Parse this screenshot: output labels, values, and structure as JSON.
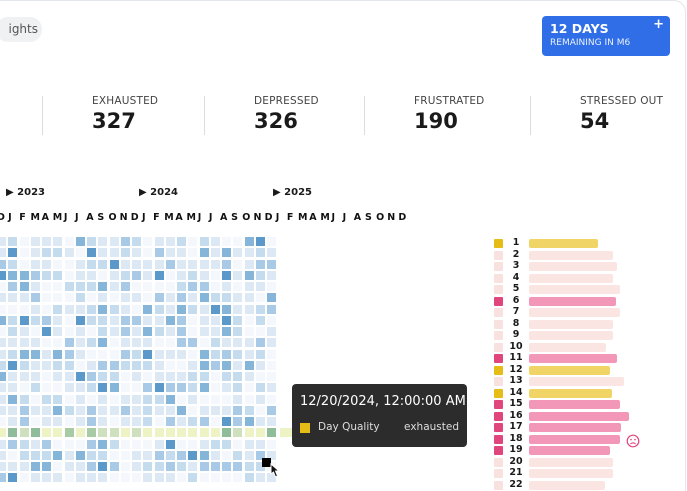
{
  "filter_pill": {
    "label": "ights"
  },
  "days_card": {
    "title": "12 DAYS",
    "subtitle": "REMAINING IN M6",
    "plus": "+"
  },
  "stats": [
    {
      "label": "EXHAUSTED",
      "value": "327"
    },
    {
      "label": "DEPRESSED",
      "value": "326"
    },
    {
      "label": "FRUSTRATED",
      "value": "190"
    },
    {
      "label": "STRESSED OUT",
      "value": "54"
    }
  ],
  "years": [
    "▶ 2023",
    "▶ 2024",
    "▶ 2025"
  ],
  "month_letters": [
    "D",
    "J",
    "F",
    "M",
    "A",
    "M",
    "J",
    "J",
    "A",
    "S",
    "O",
    "N",
    "D",
    "J",
    "F",
    "M",
    "A",
    "M",
    "J",
    "J",
    "A",
    "S",
    "O",
    "N",
    "D",
    "J",
    "F",
    "M",
    "A",
    "M",
    "J",
    "J",
    "A",
    "S",
    "O",
    "N",
    "D"
  ],
  "colors": {
    "heat": [
      "#f4f8fc",
      "#dce9f5",
      "#c5dcee",
      "#a8cae6",
      "#86b5da",
      "#5a99c9"
    ],
    "highlight_row": "#eef3c6",
    "highlight_row_cells": [
      "#cfe0bf",
      "#a8caa5",
      "#8fbd99"
    ],
    "yellow": "#e5bd16",
    "pink": "#e1457d",
    "pale": "#f8e1df",
    "bar_yellow": "#f0d566",
    "bar_pink": "#f397b8",
    "bar_pale": "#fae5e3",
    "tooltip_bg": "#2c2c2c",
    "accent": "#2f6ee6"
  },
  "tooltip": {
    "date": "12/20/2024, 12:00:00 AM",
    "label": "Day Quality",
    "value": "exhausted"
  },
  "day_rows": [
    {
      "num": "1",
      "type": "yellow",
      "level": 0.78
    },
    {
      "num": "2",
      "type": "pale",
      "level": 0.96
    },
    {
      "num": "3",
      "type": "pale",
      "level": 1.0
    },
    {
      "num": "4",
      "type": "pale",
      "level": 0.96
    },
    {
      "num": "5",
      "type": "pale",
      "level": 1.03
    },
    {
      "num": "6",
      "type": "pink",
      "level": 0.99
    },
    {
      "num": "7",
      "type": "pale",
      "level": 1.03
    },
    {
      "num": "8",
      "type": "pale",
      "level": 0.96
    },
    {
      "num": "9",
      "type": "pale",
      "level": 0.96
    },
    {
      "num": "10",
      "type": "pale",
      "level": 0.88
    },
    {
      "num": "11",
      "type": "pink",
      "level": 1.0
    },
    {
      "num": "12",
      "type": "yellow",
      "level": 0.92
    },
    {
      "num": "13",
      "type": "pale",
      "level": 1.08
    },
    {
      "num": "14",
      "type": "yellow",
      "level": 0.94
    },
    {
      "num": "15",
      "type": "pink",
      "level": 1.03
    },
    {
      "num": "16",
      "type": "pink",
      "level": 1.14
    },
    {
      "num": "17",
      "type": "pink",
      "level": 1.05
    },
    {
      "num": "18",
      "type": "pink",
      "level": 1.03
    },
    {
      "num": "19",
      "type": "pink",
      "level": 0.92
    },
    {
      "num": "20",
      "type": "pale",
      "level": 0.96
    },
    {
      "num": "21",
      "type": "pale",
      "level": 0.96
    },
    {
      "num": "22",
      "type": "pale",
      "level": 0.86
    }
  ],
  "icons": {
    "sad_face": "sad-face-icon",
    "cursor": "pointer-cursor-icon"
  }
}
